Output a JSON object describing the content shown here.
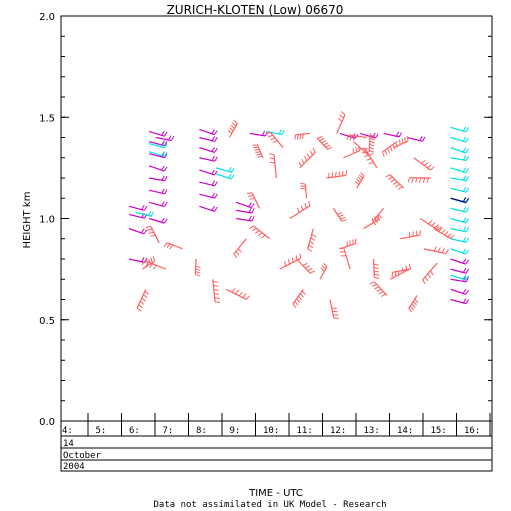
{
  "chart_data": {
    "type": "scatter",
    "title": "ZURICH-KLOTEN (Low) 06670",
    "ylabel": "HEIGHT km",
    "xlabel": "TIME - UTC",
    "footnote": "Data not assimilated in UK Model - Research",
    "ylim": [
      0.0,
      2.0
    ],
    "y_ticks": [
      "0.0",
      "0.5",
      "1.0",
      "1.5",
      "2.0"
    ],
    "x_ticks": [
      "4:",
      "5:",
      "6:",
      "7:",
      "8:",
      "9:",
      "10:",
      "11:",
      "12:",
      "13:",
      "14:",
      "15:",
      "16:"
    ],
    "date_rows": [
      "14",
      "October",
      "2004"
    ],
    "grid": false,
    "colors": {
      "magenta": "#cc00cc",
      "cyan": "#00e0e0",
      "salmon": "#ff5f5f",
      "navy": "#000080"
    },
    "series": [
      {
        "color_key": "magenta",
        "points": [
          [
            6.0,
            1.06
          ],
          [
            6.0,
            1.02
          ],
          [
            6.0,
            0.95
          ],
          [
            6.6,
            1.43
          ],
          [
            6.6,
            1.38
          ],
          [
            6.6,
            1.32
          ],
          [
            6.6,
            1.26
          ],
          [
            6.6,
            1.2
          ],
          [
            6.6,
            1.14
          ],
          [
            6.6,
            1.08
          ],
          [
            6.6,
            1.0
          ],
          [
            6.8,
            1.4
          ],
          [
            6.0,
            0.8
          ],
          [
            8.1,
            1.44
          ],
          [
            8.1,
            1.4
          ],
          [
            8.1,
            1.35
          ],
          [
            8.1,
            1.3
          ],
          [
            8.1,
            1.24
          ],
          [
            8.1,
            1.18
          ],
          [
            8.1,
            1.12
          ],
          [
            8.1,
            1.06
          ],
          [
            9.2,
            1.08
          ],
          [
            9.2,
            1.04
          ],
          [
            9.2,
            1.0
          ],
          [
            15.6,
            0.8
          ],
          [
            15.6,
            0.75
          ],
          [
            15.6,
            0.7
          ],
          [
            15.6,
            0.65
          ],
          [
            15.6,
            0.6
          ],
          [
            14.3,
            1.4
          ],
          [
            13.6,
            1.42
          ],
          [
            12.9,
            1.42
          ],
          [
            12.3,
            1.42
          ],
          [
            9.6,
            1.42
          ]
        ]
      },
      {
        "color_key": "cyan",
        "points": [
          [
            6.6,
            1.37
          ],
          [
            6.6,
            1.33
          ],
          [
            6.2,
            1.03
          ],
          [
            8.6,
            1.25
          ],
          [
            8.6,
            1.22
          ],
          [
            10.1,
            1.43
          ],
          [
            15.6,
            1.45
          ],
          [
            15.6,
            1.4
          ],
          [
            15.6,
            1.35
          ],
          [
            15.6,
            1.3
          ],
          [
            15.6,
            1.25
          ],
          [
            15.6,
            1.2
          ],
          [
            15.6,
            1.15
          ],
          [
            15.6,
            1.1
          ],
          [
            15.6,
            1.05
          ],
          [
            15.6,
            1.0
          ],
          [
            15.6,
            0.95
          ],
          [
            15.6,
            0.9
          ],
          [
            15.6,
            0.85
          ],
          [
            15.6,
            0.72
          ]
        ]
      },
      {
        "color_key": "navy",
        "points": [
          [
            15.6,
            1.1
          ]
        ]
      },
      {
        "color_key": "salmon",
        "points": [
          [
            6.4,
            0.75
          ],
          [
            6.5,
            0.65
          ],
          [
            6.9,
            0.88
          ],
          [
            7.1,
            0.75
          ],
          [
            7.6,
            0.85
          ],
          [
            8.0,
            0.8
          ],
          [
            8.5,
            0.7
          ],
          [
            8.9,
            0.65
          ],
          [
            9.5,
            0.9
          ],
          [
            9.9,
            1.05
          ],
          [
            10.2,
            0.9
          ],
          [
            10.4,
            1.2
          ],
          [
            10.6,
            1.35
          ],
          [
            10.8,
            1.0
          ],
          [
            11.0,
            0.8
          ],
          [
            11.1,
            1.25
          ],
          [
            11.3,
            1.1
          ],
          [
            11.5,
            0.95
          ],
          [
            11.6,
            1.4
          ],
          [
            11.7,
            0.7
          ],
          [
            11.9,
            1.2
          ],
          [
            12.1,
            1.05
          ],
          [
            12.3,
            0.85
          ],
          [
            12.4,
            1.3
          ],
          [
            12.6,
            0.75
          ],
          [
            12.8,
            1.15
          ],
          [
            13.0,
            0.95
          ],
          [
            13.1,
            1.4
          ],
          [
            13.3,
            0.8
          ],
          [
            13.4,
            1.25
          ],
          [
            13.6,
            1.05
          ],
          [
            13.8,
            0.7
          ],
          [
            13.9,
            1.35
          ],
          [
            14.1,
            0.9
          ],
          [
            14.2,
            1.15
          ],
          [
            14.4,
            0.75
          ],
          [
            14.5,
            1.3
          ],
          [
            14.7,
            1.0
          ],
          [
            14.8,
            0.85
          ],
          [
            15.0,
            1.2
          ],
          [
            15.1,
            0.95
          ],
          [
            15.2,
            0.78
          ],
          [
            10.5,
            0.75
          ],
          [
            11.2,
            0.65
          ],
          [
            12.0,
            0.6
          ],
          [
            12.7,
            1.38
          ],
          [
            13.7,
            0.62
          ],
          [
            14.6,
            0.62
          ],
          [
            9.0,
            1.4
          ],
          [
            10.0,
            1.3
          ],
          [
            11.4,
            1.42
          ],
          [
            12.2,
            1.42
          ],
          [
            13.2,
            1.42
          ],
          [
            14.0,
            1.38
          ]
        ]
      }
    ]
  }
}
